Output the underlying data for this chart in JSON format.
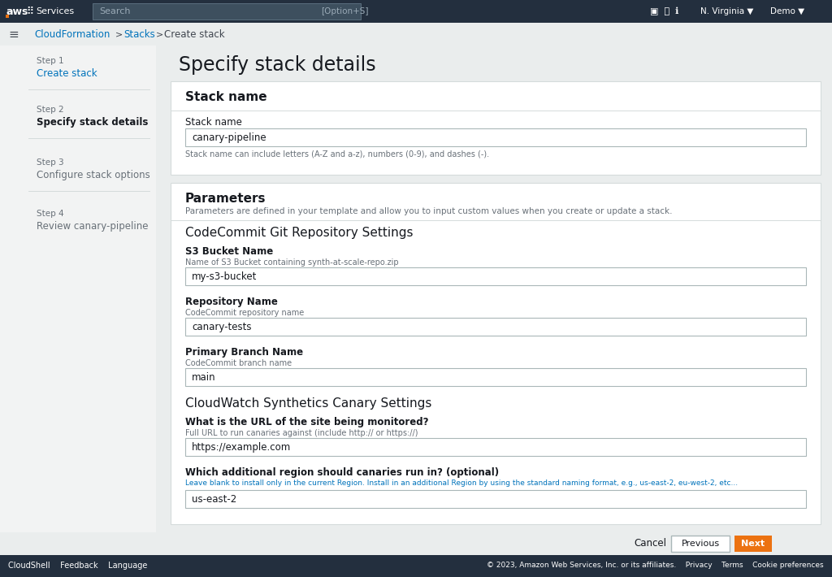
{
  "top_bar_color": "#232f3e",
  "breadcrumb_color": "#0073bb",
  "left_panel_bg": "#f2f3f3",
  "steps": [
    {
      "num": "Step 1",
      "label": "Create stack",
      "active": false,
      "link": true
    },
    {
      "num": "Step 2",
      "label": "Specify stack details",
      "active": true,
      "link": false
    },
    {
      "num": "Step 3",
      "label": "Configure stack options",
      "active": false,
      "link": false
    },
    {
      "num": "Step 4",
      "label": "Review canary-pipeline",
      "active": false,
      "link": false
    }
  ],
  "main_title": "Specify stack details",
  "section1_title": "Stack name",
  "stack_name_label": "Stack name",
  "stack_name_hint": "Stack name can include letters (A-Z and a-z), numbers (0-9), and dashes (-).",
  "stack_name_value": "canary-pipeline",
  "section2_title": "Parameters",
  "section2_subtitle": "Parameters are defined in your template and allow you to input custom values when you create or update a stack.",
  "subsection1_title": "CodeCommit Git Repository Settings",
  "field1_label": "S3 Bucket Name",
  "field1_hint": "Name of S3 Bucket containing synth-at-scale-repo.zip",
  "field1_value": "my-s3-bucket",
  "field2_label": "Repository Name",
  "field2_hint": "CodeCommit repository name",
  "field2_value": "canary-tests",
  "field3_label": "Primary Branch Name",
  "field3_hint": "CodeCommit branch name",
  "field3_value": "main",
  "subsection2_title": "CloudWatch Synthetics Canary Settings",
  "field4_label": "What is the URL of the site being monitored?",
  "field4_hint": "Full URL to run canaries against (include http:// or https://)",
  "field4_value": "https://example.com",
  "field5_label": "Which additional region should canaries run in? (optional)",
  "field5_hint": "Leave blank to install only in the current Region. Install in an additional Region by using the standard naming format, e.g., us-east-2, eu-west-2, etc...",
  "field5_hint_color": "#0073bb",
  "field5_value": "us-east-2",
  "btn_cancel": "Cancel",
  "btn_previous": "Previous",
  "btn_next": "Next",
  "btn_next_color": "#ec7211",
  "footer_bg": "#232f3e",
  "footer_left": "CloudShell    Feedback    Language",
  "footer_right": "© 2023, Amazon Web Services, Inc. or its affiliates.    Privacy    Terms    Cookie preferences",
  "aws_orange": "#ec7211",
  "link_blue": "#0073bb",
  "text_dark": "#16191f",
  "text_gray": "#687078",
  "input_border": "#aab7b8",
  "white": "#ffffff",
  "bg_main": "#eaeded",
  "card_bg": "#ffffff",
  "card_border": "#d5dbdb",
  "divider_color": "#d5dbdb"
}
